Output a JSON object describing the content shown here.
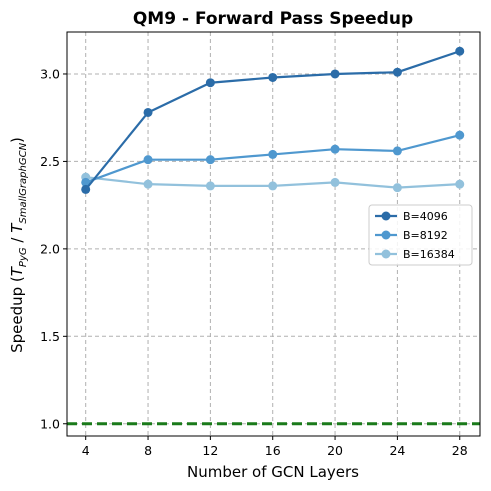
{
  "chart_data": {
    "type": "line",
    "title": "QM9 - Forward Pass Speedup",
    "xlabel": "Number of GCN Layers",
    "ylabel": {
      "prefix": "Speedup (",
      "t1": "T",
      "sub1": "PyG",
      "mid": " / ",
      "t2": "T",
      "sub2": "SmallGraphGCN",
      "suffix": ")"
    },
    "x": [
      4,
      8,
      12,
      16,
      20,
      24,
      28
    ],
    "xticks": [
      "4",
      "8",
      "12",
      "16",
      "20",
      "24",
      "28"
    ],
    "xlim": [
      2.8,
      29.3
    ],
    "ylim": [
      0.93,
      3.24
    ],
    "yticks": [
      1.0,
      1.5,
      2.0,
      2.5,
      3.0
    ],
    "yticklabels": [
      "1.0",
      "1.5",
      "2.0",
      "2.5",
      "3.0"
    ],
    "grid": true,
    "legend_position": "center-right",
    "series": [
      {
        "name": "B=4096",
        "color": "#2b6ca8",
        "values": [
          2.34,
          2.78,
          2.95,
          2.98,
          3.0,
          3.01,
          3.13
        ]
      },
      {
        "name": "B=8192",
        "color": "#4f98cf",
        "values": [
          2.38,
          2.51,
          2.51,
          2.54,
          2.57,
          2.56,
          2.65
        ]
      },
      {
        "name": "B=16384",
        "color": "#92c1dc",
        "values": [
          2.41,
          2.37,
          2.36,
          2.36,
          2.38,
          2.35,
          2.37
        ]
      }
    ],
    "reference_line": {
      "y": 1.0,
      "color": "#1a7a1a",
      "style": "dashed"
    }
  }
}
